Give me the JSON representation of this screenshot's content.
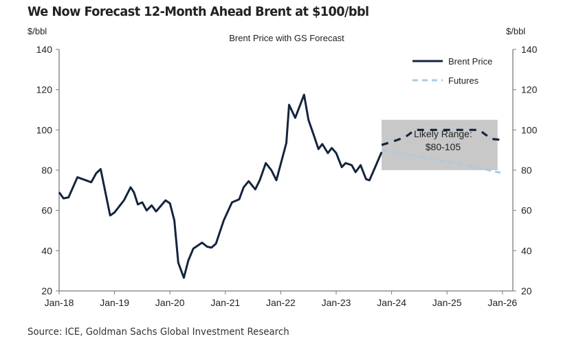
{
  "header": {
    "title": "We Now Forecast 12-Month Ahead Brent at $100/bbl"
  },
  "footer": {
    "source": "Source: ICE, Goldman Sachs Global Investment Research"
  },
  "colors": {
    "brent": "#14243d",
    "futures": "#a9cbe3",
    "forecast": "#14243d",
    "range_box": "#c8c8c8",
    "axis": "#7a7a7a",
    "text": "#222222"
  },
  "chart_data": {
    "type": "line",
    "title": "Brent Price with GS Forecast",
    "ylabel_left": "$/bbl",
    "ylabel_right": "$/bbl",
    "xlabel": "",
    "ylim": [
      20,
      140
    ],
    "yticks": [
      20,
      40,
      60,
      80,
      100,
      120,
      140
    ],
    "xlim": [
      2018.0,
      2026.15
    ],
    "xticks": [
      {
        "x": 2018.0,
        "label": "Jan-18"
      },
      {
        "x": 2019.0,
        "label": "Jan-19"
      },
      {
        "x": 2020.0,
        "label": "Jan-20"
      },
      {
        "x": 2021.0,
        "label": "Jan-21"
      },
      {
        "x": 2022.0,
        "label": "Jan-22"
      },
      {
        "x": 2023.0,
        "label": "Jan-23"
      },
      {
        "x": 2024.0,
        "label": "Jan-24"
      },
      {
        "x": 2025.0,
        "label": "Jan-25"
      },
      {
        "x": 2026.0,
        "label": "Jan-26"
      }
    ],
    "grid": false,
    "legend": {
      "position": "top-right",
      "entries": [
        {
          "name": "Brent Price",
          "style": "solid"
        },
        {
          "name": "Futures",
          "style": "dashed"
        }
      ]
    },
    "series": [
      {
        "name": "Brent Price",
        "style": "solid",
        "points": [
          [
            2018.0,
            69
          ],
          [
            2018.08,
            66
          ],
          [
            2018.17,
            66.5
          ],
          [
            2018.33,
            76.5
          ],
          [
            2018.58,
            74
          ],
          [
            2018.67,
            78.5
          ],
          [
            2018.75,
            80.5
          ],
          [
            2018.92,
            57.5
          ],
          [
            2019.0,
            59
          ],
          [
            2019.17,
            65
          ],
          [
            2019.29,
            71.5
          ],
          [
            2019.35,
            69
          ],
          [
            2019.42,
            63
          ],
          [
            2019.5,
            64
          ],
          [
            2019.58,
            60
          ],
          [
            2019.67,
            62.5
          ],
          [
            2019.75,
            59.5
          ],
          [
            2019.92,
            65
          ],
          [
            2020.0,
            63.5
          ],
          [
            2020.08,
            55
          ],
          [
            2020.15,
            34
          ],
          [
            2020.25,
            26.5
          ],
          [
            2020.33,
            35
          ],
          [
            2020.42,
            41
          ],
          [
            2020.58,
            44
          ],
          [
            2020.67,
            42
          ],
          [
            2020.75,
            41.5
          ],
          [
            2020.83,
            43.5
          ],
          [
            2020.97,
            55
          ],
          [
            2021.12,
            64
          ],
          [
            2021.25,
            65.5
          ],
          [
            2021.33,
            71.5
          ],
          [
            2021.42,
            74.5
          ],
          [
            2021.54,
            70.5
          ],
          [
            2021.62,
            75
          ],
          [
            2021.73,
            83.5
          ],
          [
            2021.83,
            80
          ],
          [
            2021.92,
            75
          ],
          [
            2022.1,
            93.5
          ],
          [
            2022.15,
            112.5
          ],
          [
            2022.26,
            106
          ],
          [
            2022.42,
            117.5
          ],
          [
            2022.5,
            105
          ],
          [
            2022.6,
            97
          ],
          [
            2022.68,
            90.5
          ],
          [
            2022.75,
            93
          ],
          [
            2022.85,
            88.5
          ],
          [
            2022.92,
            91
          ],
          [
            2023.0,
            88.5
          ],
          [
            2023.1,
            81.5
          ],
          [
            2023.17,
            83.5
          ],
          [
            2023.28,
            82.5
          ],
          [
            2023.35,
            79
          ],
          [
            2023.44,
            82.5
          ],
          [
            2023.54,
            75.5
          ],
          [
            2023.6,
            75
          ],
          [
            2023.68,
            80
          ],
          [
            2023.82,
            89
          ]
        ]
      },
      {
        "name": "GS Forecast",
        "style": "dashed",
        "points": [
          [
            2023.82,
            92.5
          ],
          [
            2024.05,
            94.5
          ],
          [
            2024.25,
            96.5
          ],
          [
            2024.42,
            100
          ],
          [
            2024.75,
            100
          ],
          [
            2025.0,
            100
          ],
          [
            2025.25,
            100
          ],
          [
            2025.58,
            100
          ],
          [
            2025.8,
            95.5
          ],
          [
            2026.0,
            95
          ]
        ]
      },
      {
        "name": "Futures",
        "style": "dashed",
        "points": [
          [
            2023.82,
            90
          ],
          [
            2024.25,
            88
          ],
          [
            2024.75,
            85.5
          ],
          [
            2025.25,
            83
          ],
          [
            2025.75,
            80
          ],
          [
            2026.0,
            78.5
          ]
        ]
      }
    ],
    "annotations": [
      {
        "type": "range",
        "label_line1": "Likely Range:",
        "label_line2": "$80-105",
        "x_start": 2023.82,
        "x_end": 2026.0,
        "y_low": 80,
        "y_high": 105
      }
    ]
  }
}
